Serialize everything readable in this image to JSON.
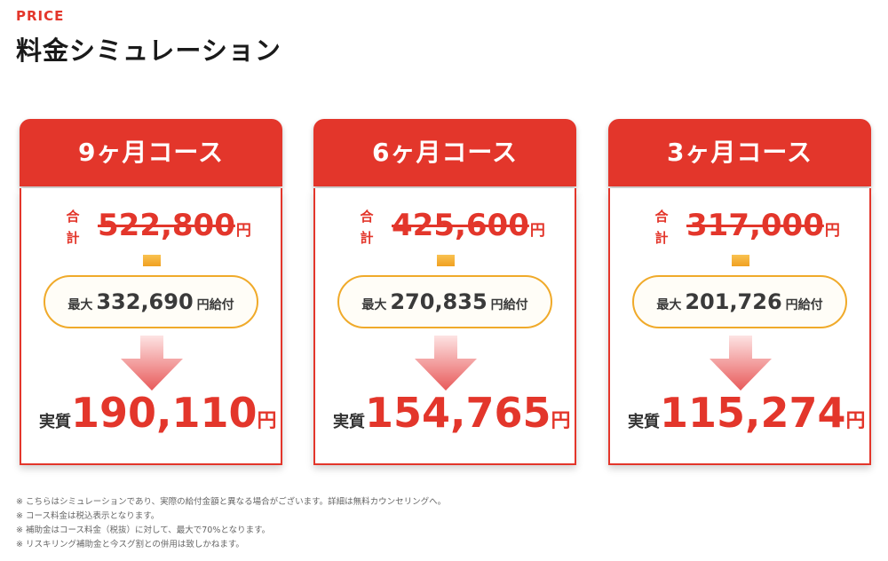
{
  "header": {
    "eyebrow": "PRICE",
    "title": "料金シミュレーション"
  },
  "colors": {
    "accent": "#e3362b",
    "subsidy_border": "#f0aa2a",
    "connector": "#f5b535",
    "arrow": "#e85a5a"
  },
  "cards": [
    {
      "title": "9ヶ月コース",
      "total_label_top": "合",
      "total_label_bottom": "計",
      "total_price": "522,800",
      "total_unit": "円",
      "subsidy_prefix": "最大",
      "subsidy_amount": "332,690",
      "subsidy_suffix": "円給付",
      "arrow_icon": "arrow-down-icon",
      "final_prefix": "実質",
      "final_price": "190,110",
      "final_unit": "円"
    },
    {
      "title": "6ヶ月コース",
      "total_label_top": "合",
      "total_label_bottom": "計",
      "total_price": "425,600",
      "total_unit": "円",
      "subsidy_prefix": "最大",
      "subsidy_amount": "270,835",
      "subsidy_suffix": "円給付",
      "arrow_icon": "arrow-down-icon",
      "final_prefix": "実質",
      "final_price": "154,765",
      "final_unit": "円"
    },
    {
      "title": "3ヶ月コース",
      "total_label_top": "合",
      "total_label_bottom": "計",
      "total_price": "317,000",
      "total_unit": "円",
      "subsidy_prefix": "最大",
      "subsidy_amount": "201,726",
      "subsidy_suffix": "円給付",
      "arrow_icon": "arrow-down-icon",
      "final_prefix": "実質",
      "final_price": "115,274",
      "final_unit": "円"
    }
  ],
  "notes": [
    "※ こちらはシミュレーションであり、実際の給付金額と異なる場合がございます。詳細は無料カウンセリングへ。",
    "※ コース料金は税込表示となります。",
    "※ 補助金はコース料金（税抜）に対して、最大で70%となります。",
    "※ リスキリング補助金と今スグ割との併用は致しかねます。"
  ]
}
